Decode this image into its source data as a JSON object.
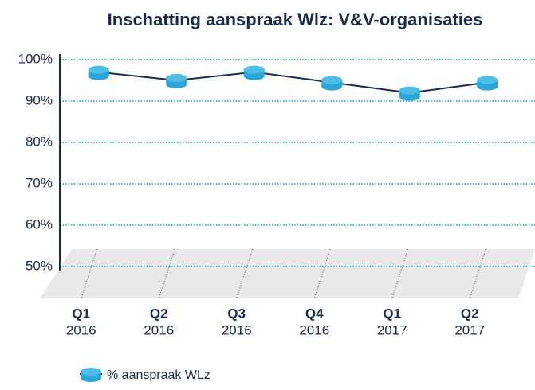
{
  "chart_data": {
    "type": "line",
    "title": "Inschatting aanspraak Wlz: V&V-organisaties",
    "categories": [
      [
        "Q1",
        "2016"
      ],
      [
        "Q2",
        "2016"
      ],
      [
        "Q3",
        "2016"
      ],
      [
        "Q4",
        "2016"
      ],
      [
        "Q1",
        "2017"
      ],
      [
        "Q2",
        "2017"
      ]
    ],
    "series": [
      {
        "name": "% aanspraak WLz",
        "color": "#4dbde8",
        "values": [
          97,
          95,
          97,
          94.5,
          92,
          94.5
        ]
      }
    ],
    "ylim": [
      50,
      100
    ],
    "yticks": [
      {
        "value": 50,
        "label": "50%"
      },
      {
        "value": 60,
        "label": "60%"
      },
      {
        "value": 70,
        "label": "70%"
      },
      {
        "value": 80,
        "label": "80%"
      },
      {
        "value": 90,
        "label": "90%"
      },
      {
        "value": 100,
        "label": "100%"
      }
    ],
    "grid": true,
    "legend": "bottom"
  }
}
